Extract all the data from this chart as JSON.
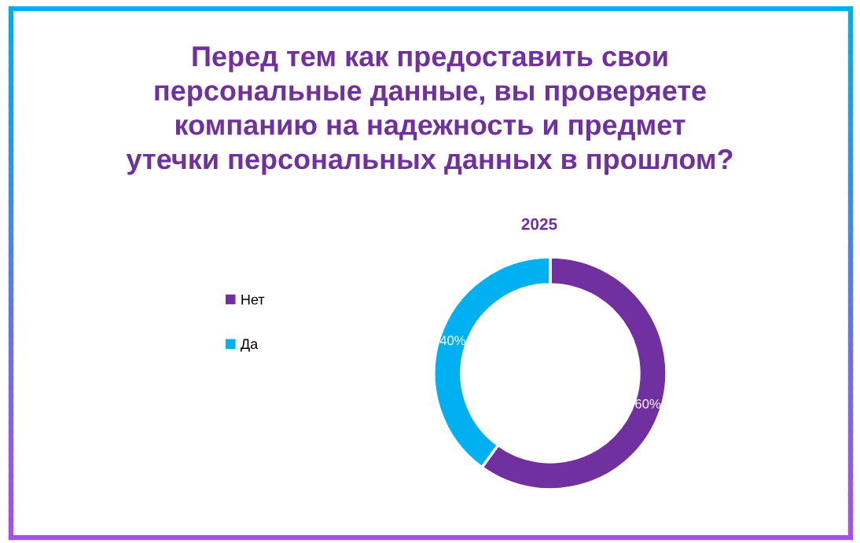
{
  "chart_data": {
    "type": "donut",
    "title": "Перед тем как предоставить свои\nперсональные данные, вы проверяете\nкомпанию на надежность и предмет\nутечки персональных данных в прошлом?",
    "subtitle": "2025",
    "categories": [
      "Нет",
      "Да"
    ],
    "values": [
      60,
      40
    ],
    "colors": [
      "#7030a0",
      "#00b0f0"
    ],
    "value_labels": [
      "60%",
      "40%"
    ],
    "legend": "left"
  }
}
